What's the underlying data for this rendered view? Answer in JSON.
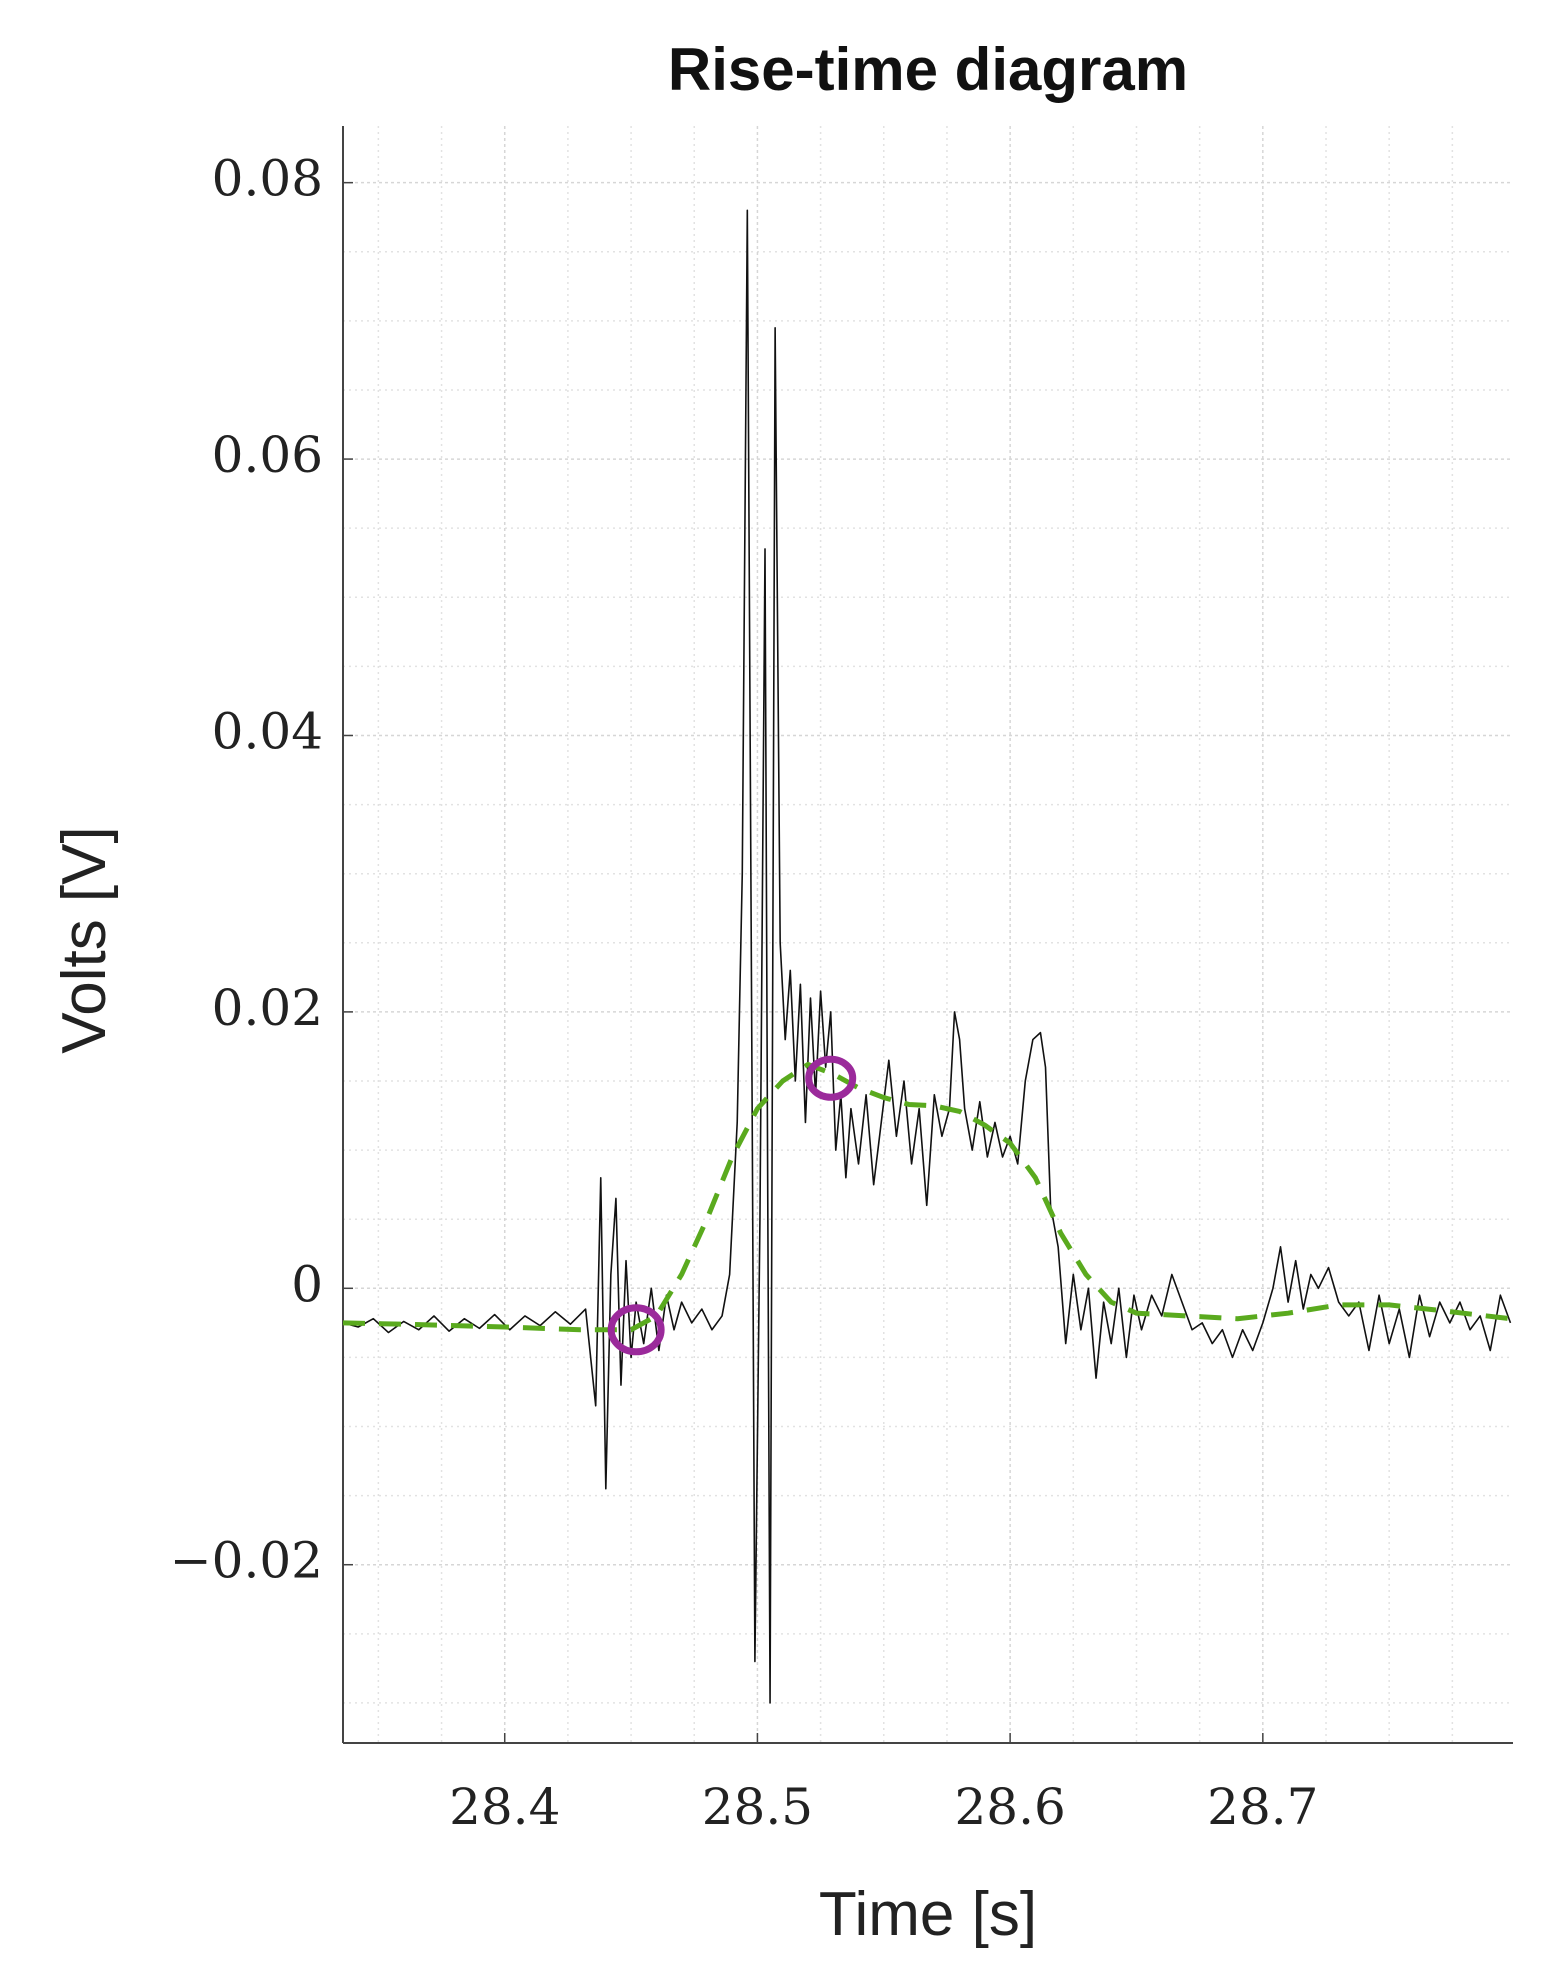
{
  "chart_data": {
    "type": "line",
    "title": "Rise-time diagram",
    "x_label": "Time [s]",
    "y_label": "Volts [V]",
    "xlim": [
      28.336,
      28.799
    ],
    "ylim": [
      -0.0329,
      0.0841
    ],
    "xticks": [
      28.4,
      28.5,
      28.6,
      28.7
    ],
    "yticks": [
      {
        "value": -0.02,
        "label": "−0.02"
      },
      0,
      0.02,
      0.04,
      0.06,
      0.08
    ],
    "xminorticks": [
      28.35,
      28.375,
      28.425,
      28.45,
      28.475,
      28.525,
      28.55,
      28.575,
      28.625,
      28.65,
      28.675,
      28.725,
      28.75,
      28.775
    ],
    "yminorticks": [
      -0.03,
      -0.025,
      -0.015,
      -0.01,
      -0.005,
      0.005,
      0.01,
      0.015,
      0.025,
      0.03,
      0.035,
      0.045,
      0.05,
      0.055,
      0.065,
      0.07,
      0.075
    ],
    "grid": true,
    "series": [
      {
        "color": "#111111",
        "dashed": false,
        "x": [
          28.336,
          28.342,
          28.348,
          28.354,
          28.36,
          28.366,
          28.372,
          28.378,
          28.384,
          28.39,
          28.396,
          28.402,
          28.408,
          28.414,
          28.42,
          28.426,
          28.432,
          28.436,
          28.438,
          28.44,
          28.442,
          28.444,
          28.446,
          28.448,
          28.45,
          28.452,
          28.455,
          28.458,
          28.461,
          28.464,
          28.467,
          28.47,
          28.474,
          28.478,
          28.482,
          28.486,
          28.489,
          28.492,
          28.494,
          28.496,
          28.498,
          28.499,
          28.501,
          28.503,
          28.504,
          28.505,
          28.506,
          28.507,
          28.509,
          28.511,
          28.513,
          28.515,
          28.517,
          28.519,
          28.521,
          28.523,
          28.525,
          28.527,
          28.529,
          28.531,
          28.533,
          28.535,
          28.537,
          28.54,
          28.543,
          28.546,
          28.549,
          28.552,
          28.555,
          28.558,
          28.561,
          28.564,
          28.567,
          28.57,
          28.573,
          28.576,
          28.578,
          28.58,
          28.582,
          28.585,
          28.588,
          28.591,
          28.594,
          28.597,
          28.6,
          28.603,
          28.606,
          28.609,
          28.612,
          28.614,
          28.616,
          28.619,
          28.622,
          28.625,
          28.628,
          28.631,
          28.634,
          28.637,
          28.64,
          28.643,
          28.646,
          28.649,
          28.652,
          28.656,
          28.66,
          28.664,
          28.668,
          28.672,
          28.676,
          28.68,
          28.684,
          28.688,
          28.692,
          28.696,
          28.7,
          28.704,
          28.707,
          28.71,
          28.713,
          28.716,
          28.719,
          28.722,
          28.726,
          28.73,
          28.734,
          28.738,
          28.742,
          28.746,
          28.75,
          28.754,
          28.758,
          28.762,
          28.766,
          28.77,
          28.774,
          28.778,
          28.782,
          28.786,
          28.79,
          28.794,
          28.798
        ],
        "values": [
          -0.0025,
          -0.0028,
          -0.0022,
          -0.0032,
          -0.0024,
          -0.003,
          -0.002,
          -0.0031,
          -0.0022,
          -0.0029,
          -0.0019,
          -0.003,
          -0.002,
          -0.0027,
          -0.0017,
          -0.0026,
          -0.0015,
          -0.0085,
          0.008,
          -0.0145,
          0.001,
          0.0065,
          -0.007,
          0.002,
          -0.005,
          -0.001,
          -0.004,
          0,
          -0.0045,
          -0.0005,
          -0.003,
          -0.001,
          -0.0025,
          -0.0015,
          -0.003,
          -0.002,
          0.001,
          0.012,
          0.03,
          0.078,
          0.01,
          -0.027,
          0.005,
          0.0535,
          0.01,
          -0.03,
          0.02,
          0.0695,
          0.025,
          0.018,
          0.023,
          0.015,
          0.022,
          0.012,
          0.021,
          0.014,
          0.0215,
          0.016,
          0.02,
          0.01,
          0.014,
          0.008,
          0.013,
          0.009,
          0.014,
          0.0075,
          0.012,
          0.0165,
          0.011,
          0.015,
          0.009,
          0.013,
          0.006,
          0.014,
          0.011,
          0.013,
          0.02,
          0.018,
          0.013,
          0.01,
          0.0135,
          0.0095,
          0.012,
          0.0095,
          0.011,
          0.009,
          0.015,
          0.018,
          0.0185,
          0.016,
          0.006,
          0.003,
          -0.004,
          0.001,
          -0.003,
          0,
          -0.0065,
          -0.001,
          -0.004,
          0,
          -0.005,
          -0.0005,
          -0.003,
          -0.0005,
          -0.002,
          0.001,
          -0.001,
          -0.003,
          -0.0025,
          -0.004,
          -0.003,
          -0.005,
          -0.003,
          -0.0045,
          -0.0025,
          0,
          0.003,
          -0.001,
          0.002,
          -0.0015,
          0.001,
          0,
          0.0015,
          -0.001,
          -0.002,
          -0.001,
          -0.0045,
          -0.0005,
          -0.004,
          -0.0015,
          -0.005,
          -0.0005,
          -0.0035,
          -0.001,
          -0.0025,
          -0.001,
          -0.003,
          -0.002,
          -0.0045,
          -0.0005,
          -0.0025
        ]
      },
      {
        "color": "#5aaa1e",
        "dashed": true,
        "x": [
          28.336,
          28.36,
          28.4,
          28.43,
          28.45,
          28.46,
          28.47,
          28.48,
          28.49,
          28.5,
          28.51,
          28.52,
          28.53,
          28.54,
          28.55,
          28.56,
          28.57,
          28.58,
          28.59,
          28.6,
          28.61,
          28.62,
          28.63,
          28.64,
          28.65,
          28.67,
          28.69,
          28.71,
          28.73,
          28.75,
          28.77,
          28.798
        ],
        "values": [
          -0.0025,
          -0.0026,
          -0.0028,
          -0.003,
          -0.003,
          -0.002,
          0.001,
          0.005,
          0.0095,
          0.013,
          0.015,
          0.0162,
          0.0155,
          0.0145,
          0.0138,
          0.0133,
          0.0132,
          0.0128,
          0.0118,
          0.0105,
          0.008,
          0.004,
          0.001,
          -0.001,
          -0.0018,
          -0.002,
          -0.0022,
          -0.0018,
          -0.0012,
          -0.0012,
          -0.0016,
          -0.0022
        ]
      }
    ],
    "markers": {
      "color": "#9b2a9b",
      "x": [
        28.452,
        28.529
      ],
      "values": [
        -0.003,
        0.0152
      ]
    }
  }
}
